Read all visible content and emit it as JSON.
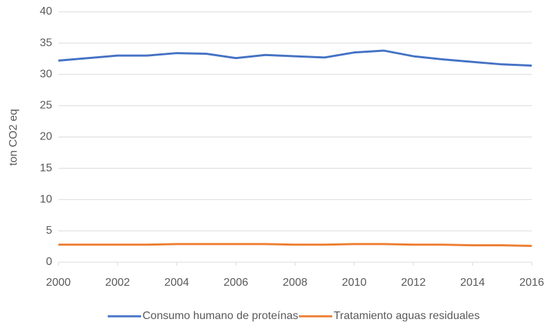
{
  "chart_data": {
    "type": "line",
    "y_label": "ton CO2 eq",
    "x": [
      2000,
      2001,
      2002,
      2003,
      2004,
      2005,
      2006,
      2007,
      2008,
      2009,
      2010,
      2011,
      2012,
      2013,
      2014,
      2015,
      2016
    ],
    "series": [
      {
        "name": "Consumo humano de proteínas",
        "color": "#4472c4",
        "values": [
          32.2,
          32.6,
          33.0,
          33.0,
          33.4,
          33.3,
          32.6,
          33.1,
          32.9,
          32.7,
          33.5,
          33.8,
          32.9,
          32.4,
          32.0,
          31.6,
          31.4
        ]
      },
      {
        "name": "Tratamiento aguas residuales",
        "color": "#ed7d31",
        "values": [
          2.8,
          2.8,
          2.8,
          2.8,
          2.9,
          2.9,
          2.9,
          2.9,
          2.8,
          2.8,
          2.9,
          2.9,
          2.8,
          2.8,
          2.7,
          2.7,
          2.6
        ]
      }
    ],
    "xlim": [
      2000,
      2016
    ],
    "xticks": [
      2000,
      2002,
      2004,
      2006,
      2008,
      2010,
      2012,
      2014,
      2016
    ],
    "ylim": [
      0,
      40
    ],
    "yticks": [
      0,
      5,
      10,
      15,
      20,
      25,
      30,
      35,
      40
    ],
    "grid": true,
    "legend": "bottom"
  }
}
